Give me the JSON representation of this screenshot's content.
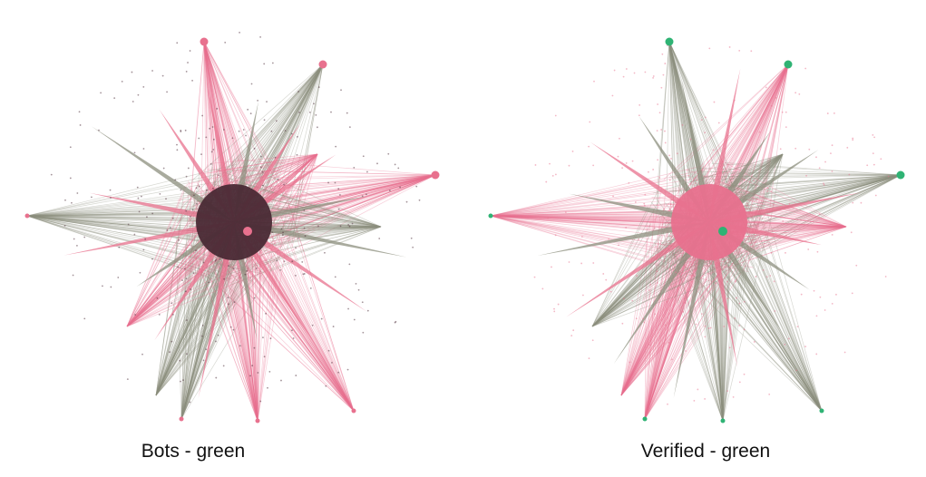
{
  "colors": {
    "pink": "#e8718e",
    "green": "#2fb374",
    "gray_green": "#8c8f7e",
    "dark_core": "#4a2a35",
    "background": "#ffffff"
  },
  "panels": [
    {
      "caption": "Bots - green",
      "edge_color": "pink",
      "highlight_color": "green",
      "core_color": "dark_core",
      "core_dot_color": "pink"
    },
    {
      "caption": "Verified - green",
      "edge_color": "gray_green",
      "highlight_color": "green",
      "core_color": "pink",
      "core_dot_color": "green"
    }
  ]
}
